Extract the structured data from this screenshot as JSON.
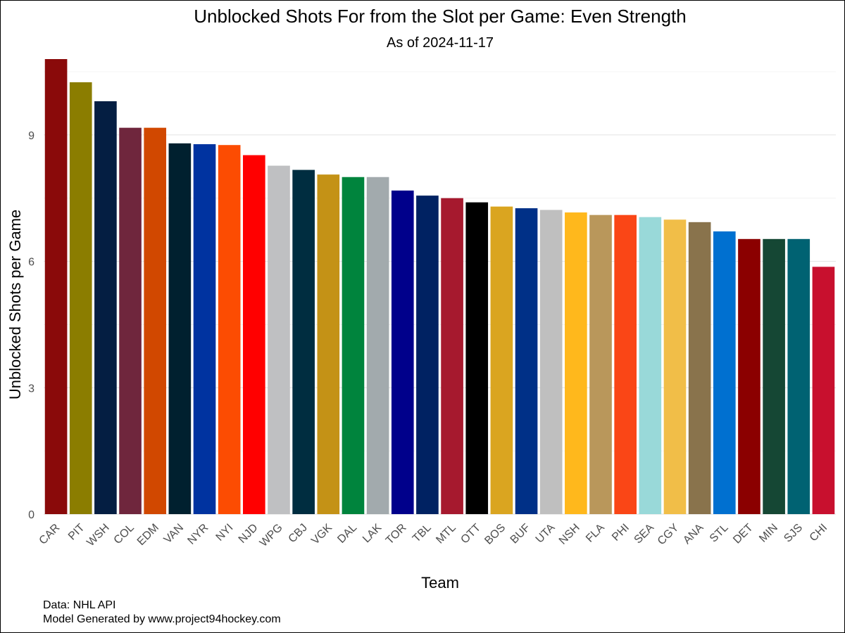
{
  "chart_data": {
    "type": "bar",
    "title": "Unblocked Shots For from the Slot per Game: Even Strength",
    "subtitle": "As of 2024-11-17",
    "xlabel": "Team",
    "ylabel": "Unblocked Shots per Game",
    "ylim": [
      0,
      10.8
    ],
    "yticks": [
      0,
      3,
      6,
      9
    ],
    "grid": true,
    "legend": "none",
    "categories": [
      "CAR",
      "PIT",
      "WSH",
      "COL",
      "EDM",
      "VAN",
      "NYR",
      "NYI",
      "NJD",
      "WPG",
      "CBJ",
      "VGK",
      "DAL",
      "LAK",
      "TOR",
      "TBL",
      "MTL",
      "OTT",
      "BOS",
      "BUF",
      "UTA",
      "NSH",
      "FLA",
      "PHI",
      "SEA",
      "CGY",
      "ANA",
      "STL",
      "DET",
      "MIN",
      "SJS",
      "CHI"
    ],
    "values": [
      10.8,
      10.25,
      9.8,
      9.17,
      9.17,
      8.8,
      8.78,
      8.76,
      8.52,
      8.27,
      8.17,
      8.06,
      8.0,
      8.0,
      7.68,
      7.56,
      7.5,
      7.4,
      7.3,
      7.26,
      7.22,
      7.16,
      7.1,
      7.1,
      7.05,
      6.99,
      6.93,
      6.71,
      6.53,
      6.53,
      6.53,
      5.87
    ],
    "colors": [
      "#8A0A0A",
      "#8B7D00",
      "#041E42",
      "#6F263D",
      "#D14800",
      "#00202F",
      "#0033A0",
      "#FC4C02",
      "#FF0000",
      "#BFC0C2",
      "#002D40",
      "#C49216",
      "#00843D",
      "#A2AAAD",
      "#00008B",
      "#002262",
      "#A6192E",
      "#000000",
      "#DAA520",
      "#003087",
      "#BFBFBF",
      "#FFB81C",
      "#B9975B",
      "#FA4616",
      "#99D9D9",
      "#F1BE48",
      "#89734C",
      "#0070D0",
      "#8B0000",
      "#154734",
      "#006272",
      "#C8102E"
    ],
    "caption": [
      "Data: NHL API",
      "Model Generated by www.project94hockey.com"
    ]
  }
}
